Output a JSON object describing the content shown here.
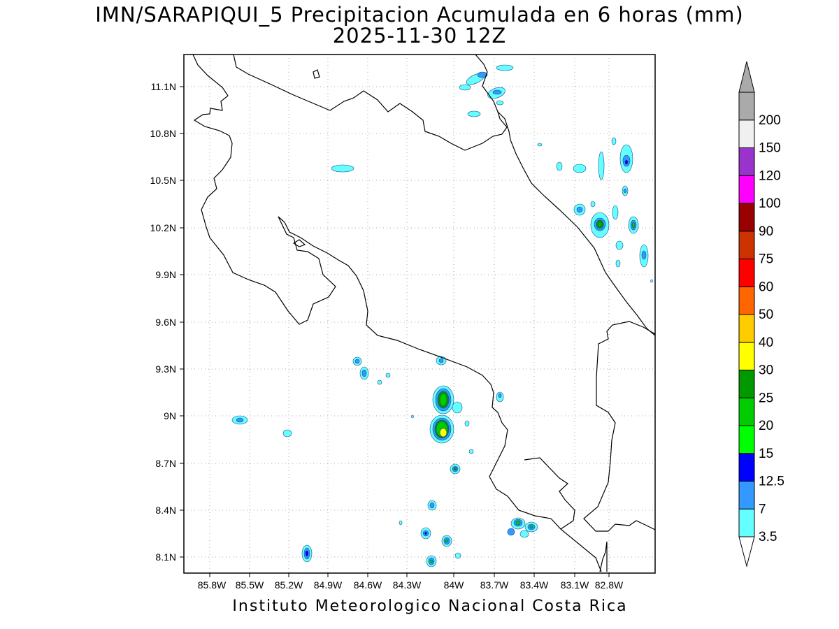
{
  "title": {
    "line1": "IMN/SARAPIQUI_5 Precipitacion Acumulada en 6 horas (mm)",
    "line2": "2025-11-30 12Z"
  },
  "map": {
    "lon_range": [
      -86.0,
      -82.6
    ],
    "lat_range": [
      8.0,
      11.3
    ],
    "lon_ticks": [
      "85.8W",
      "85.5W",
      "85.2W",
      "84.9W",
      "84.6W",
      "84.3W",
      "84W",
      "83.7W",
      "83.4W",
      "83.1W",
      "82.8W"
    ],
    "lat_ticks": [
      "11.1N",
      "10.8N",
      "10.5N",
      "10.2N",
      "9.9N",
      "9.6N",
      "9.3N",
      "9N",
      "8.7N",
      "8.4N",
      "8.1N"
    ],
    "grid": "dotted"
  },
  "colorbar": {
    "levels": [
      "3.5",
      "7",
      "12.5",
      "15",
      "20",
      "25",
      "30",
      "40",
      "50",
      "60",
      "75",
      "90",
      "100",
      "120",
      "150",
      "200"
    ],
    "colors": [
      "#66ffff",
      "#3399ff",
      "#0000ff",
      "#00ff00",
      "#00cc00",
      "#009900",
      "#ffff00",
      "#ffcc00",
      "#ff6600",
      "#ff0000",
      "#cc3300",
      "#990000",
      "#ff00ff",
      "#9933cc",
      "#f0f0f0",
      "#aaaaaa"
    ]
  },
  "footer": "Instituto Meteorologico Nacional Costa Rica"
}
